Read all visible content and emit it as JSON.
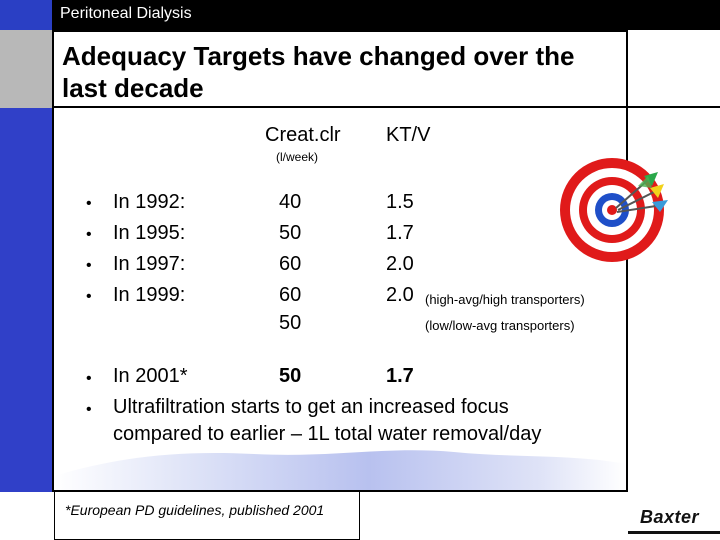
{
  "header": {
    "title": "Peritoneal Dialysis"
  },
  "slide": {
    "headline_line1": "Adequacy Targets have changed over the",
    "headline_line2": "last decade",
    "col1_header": "Creat.clr",
    "col1_unit": "(l/week)",
    "col2_header": "KT/V",
    "rows": [
      {
        "label": "In 1992:",
        "creat": "40",
        "ktv": "1.5"
      },
      {
        "label": "In 1995:",
        "creat": "50",
        "ktv": "1.7"
      },
      {
        "label": "In 1997:",
        "creat": "60",
        "ktv": "2.0"
      },
      {
        "label": "In 1999:",
        "creat": "60",
        "ktv": "2.0",
        "note": "(high-avg/high transporters)"
      },
      {
        "label": "",
        "creat": "50",
        "ktv": "",
        "note": "(low/low-avg transporters)"
      }
    ],
    "row_2001": {
      "label": "In 2001*",
      "creat": "50",
      "ktv": "1.7"
    },
    "uf_line1": "Ultrafiltration starts to get an increased focus",
    "uf_line2": "compared to earlier – 1L total water removal/day",
    "footnote": "*European PD guidelines, published 2001",
    "logo": "Baxter"
  },
  "icons": {
    "bullet": "bullet-dot",
    "dartboard": "dartboard-icon"
  },
  "colors": {
    "top_bar": "#000000",
    "accent_blue": "#3040c8",
    "target_red": "#e01a1a"
  }
}
